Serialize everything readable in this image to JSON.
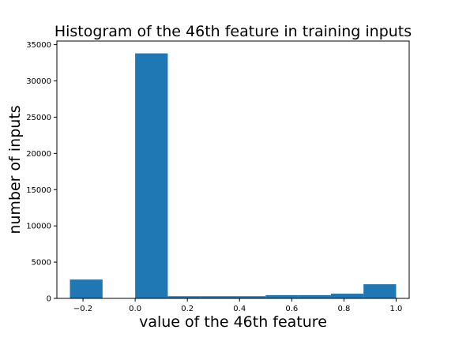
{
  "chart_data": {
    "type": "bar",
    "title": "Histogram of the 46th feature in training inputs",
    "xlabel": "value of the 46th feature",
    "ylabel": "number of inputs",
    "xlim": [
      -0.3,
      1.05
    ],
    "ylim": [
      0,
      35500
    ],
    "xticks": [
      -0.2,
      0.0,
      0.2,
      0.4,
      0.6,
      0.8,
      1.0
    ],
    "xtick_labels": [
      "−0.2",
      "0.0",
      "0.2",
      "0.4",
      "0.6",
      "0.8",
      "1.0"
    ],
    "yticks": [
      0,
      5000,
      10000,
      15000,
      20000,
      25000,
      30000,
      35000
    ],
    "ytick_labels": [
      "0",
      "5000",
      "10000",
      "15000",
      "20000",
      "25000",
      "30000",
      "35000"
    ],
    "bin_edges": [
      -0.25,
      -0.125,
      0.0,
      0.125,
      0.25,
      0.375,
      0.5,
      0.625,
      0.75,
      0.875,
      1.0
    ],
    "counts": [
      2600,
      0,
      33800,
      300,
      300,
      300,
      450,
      450,
      650,
      1950
    ],
    "bar_color": "#1f77b4",
    "grid": false,
    "legend": "none"
  }
}
